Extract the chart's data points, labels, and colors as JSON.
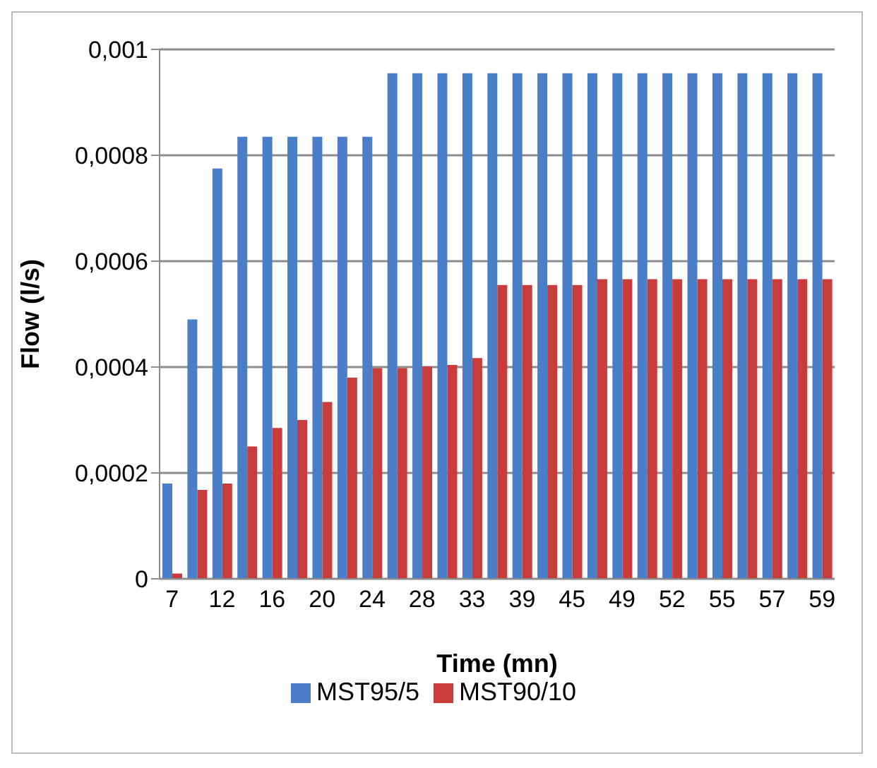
{
  "chart_data": {
    "type": "bar",
    "xlabel": "Time (mn)",
    "ylabel": "Flow (l/s)",
    "categories": [
      "7",
      null,
      "12",
      null,
      "16",
      null,
      "20",
      null,
      "24",
      null,
      "28",
      null,
      "33",
      null,
      "39",
      null,
      "45",
      null,
      "49",
      null,
      "52",
      null,
      "55",
      null,
      "57",
      null,
      "59"
    ],
    "series": [
      {
        "name": "MST95/5",
        "color": "#4a7ec8",
        "values": [
          0.00018,
          0.00049,
          0.000775,
          0.000835,
          0.000835,
          0.000835,
          0.000835,
          0.000835,
          0.000835,
          0.000955,
          0.000955,
          0.000955,
          0.000955,
          0.000955,
          0.000955,
          0.000955,
          0.000955,
          0.000955,
          0.000955,
          0.000955,
          0.000955,
          0.000955,
          0.000955,
          0.000955,
          0.000955,
          0.000955,
          0.000955
        ]
      },
      {
        "name": "MST90/10",
        "color": "#c83c3c",
        "values": [
          1e-05,
          0.000168,
          0.00018,
          0.00025,
          0.000285,
          0.0003,
          0.000334,
          0.00038,
          0.000398,
          0.000398,
          0.000401,
          0.000404,
          0.000417,
          0.000555,
          0.000555,
          0.000555,
          0.000555,
          0.000566,
          0.000566,
          0.000566,
          0.000566,
          0.000566,
          0.000566,
          0.000566,
          0.000566,
          0.000566,
          0.000566
        ]
      }
    ],
    "ylim": [
      0,
      0.001
    ],
    "yticks": [
      {
        "value": 0,
        "label": "0"
      },
      {
        "value": 0.0002,
        "label": "0,0002"
      },
      {
        "value": 0.0004,
        "label": "0,0004"
      },
      {
        "value": 0.0006,
        "label": "0,0006"
      },
      {
        "value": 0.0008,
        "label": "0,0008"
      },
      {
        "value": 0.001,
        "label": "0,001"
      }
    ],
    "grid": "y",
    "legend": "bottom"
  }
}
